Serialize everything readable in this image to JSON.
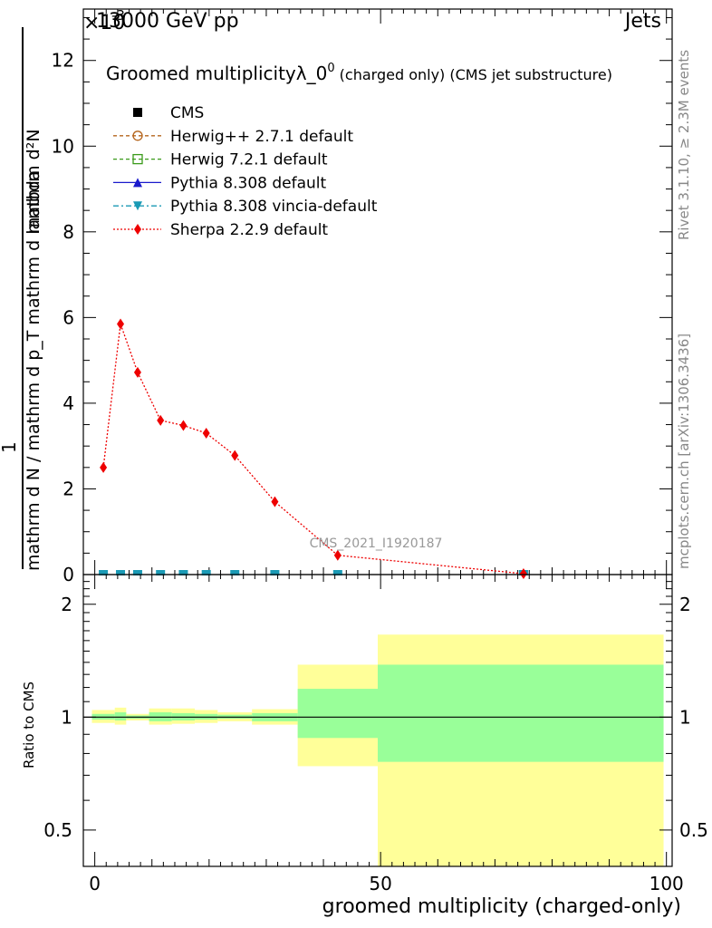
{
  "header": {
    "energy_label": "13000 GeV pp",
    "exponent_label": "×10",
    "exponent_power": "-3",
    "category_label": "Jets"
  },
  "side": {
    "rivet_label": "Rivet 3.1.10, ≥ 2.3M events",
    "mcplots_label": "mcplots.cern.ch [arXiv:1306.3436]"
  },
  "legend": {
    "title_main": "Groomed multiplicityλ_0",
    "title_sup": "0",
    "title_suffix": " (charged only) (CMS jet substructure)",
    "entries": [
      {
        "label": "CMS",
        "color": "#000000",
        "marker": "square-filled",
        "line": "none"
      },
      {
        "label": "Herwig++ 2.7.1 default",
        "color": "#b5651d",
        "marker": "circle-open",
        "line": "dashed"
      },
      {
        "label": "Herwig 7.2.1 default",
        "color": "#3a9a1a",
        "marker": "square-open",
        "line": "dashed"
      },
      {
        "label": "Pythia 8.308 default",
        "color": "#1a1acc",
        "marker": "triangle-up-filled",
        "line": "solid"
      },
      {
        "label": "Pythia 8.308 vincia-default",
        "color": "#1a9ab5",
        "marker": "triangle-down-filled",
        "line": "dashdot"
      },
      {
        "label": "Sherpa 2.2.9 default",
        "color": "#ee0000",
        "marker": "diamond-filled",
        "line": "dotted"
      }
    ]
  },
  "analysis_id": "CMS_2021_I1920187",
  "axes": {
    "ylabel_main": "mathrm d N / mathrm d p_T mathrm d lambda",
    "ylabel_num": "mathrm d²N",
    "ylabel_den": "mathrm d p_T mathrm d p_T mathrm d lambda",
    "ylabel_prefix": "1",
    "ratio_ylabel": "Ratio to CMS",
    "xlabel": "groomed multiplicity (charged-only)"
  },
  "chart_data": {
    "type": "line",
    "title": "Groomed multiplicityλ_0^0 (charged only) (CMS jet substructure)",
    "xlabel": "groomed multiplicity (charged-only)",
    "xlim": [
      -2,
      101
    ],
    "main_ylim": [
      0,
      13.2
    ],
    "main_yticks": [
      "0",
      "2",
      "4",
      "6",
      "8",
      "10",
      "12"
    ],
    "ratio_ylim": [
      0.4,
      2.4
    ],
    "ratio_yticks": [
      "0.5",
      "1",
      "2"
    ],
    "xticks": [
      "0",
      "50",
      "100"
    ],
    "sherpa": {
      "name": "Sherpa 2.2.9 default",
      "x": [
        1.5,
        4.5,
        7.5,
        11.5,
        15.5,
        19.5,
        24.5,
        31.5,
        42.5,
        75
      ],
      "y": [
        2.5,
        5.85,
        4.72,
        3.6,
        3.48,
        3.3,
        2.78,
        1.7,
        0.45,
        0.02
      ]
    },
    "cms_markers_x": [
      1.5,
      4.5,
      7.5,
      11.5,
      15.5,
      19.5,
      24.5,
      31.5,
      42.5,
      75
    ],
    "ratio_bands": [
      {
        "xlo": -0.5,
        "xhi": 3.5,
        "outer": [
          0.965,
          1.045
        ],
        "inner": [
          0.985,
          1.02
        ]
      },
      {
        "xlo": 3.5,
        "xhi": 5.5,
        "outer": [
          0.955,
          1.06
        ],
        "inner": [
          0.98,
          1.03
        ]
      },
      {
        "xlo": 5.5,
        "xhi": 9.5,
        "outer": [
          0.98,
          1.02
        ],
        "inner": [
          0.99,
          1.01
        ]
      },
      {
        "xlo": 9.5,
        "xhi": 13.5,
        "outer": [
          0.955,
          1.055
        ],
        "inner": [
          0.975,
          1.03
        ]
      },
      {
        "xlo": 13.5,
        "xhi": 17.5,
        "outer": [
          0.96,
          1.055
        ],
        "inner": [
          0.98,
          1.025
        ]
      },
      {
        "xlo": 17.5,
        "xhi": 21.5,
        "outer": [
          0.965,
          1.045
        ],
        "inner": [
          0.985,
          1.02
        ]
      },
      {
        "xlo": 21.5,
        "xhi": 27.5,
        "outer": [
          0.975,
          1.03
        ],
        "inner": [
          0.99,
          1.015
        ]
      },
      {
        "xlo": 27.5,
        "xhi": 35.5,
        "outer": [
          0.955,
          1.05
        ],
        "inner": [
          0.975,
          1.025
        ]
      },
      {
        "xlo": 35.5,
        "xhi": 49.5,
        "outer": [
          0.74,
          1.38
        ],
        "inner": [
          0.88,
          1.19
        ]
      },
      {
        "xlo": 49.5,
        "xhi": 99.5,
        "outer": [
          0.4,
          1.66
        ],
        "inner": [
          0.76,
          1.38
        ]
      }
    ]
  }
}
